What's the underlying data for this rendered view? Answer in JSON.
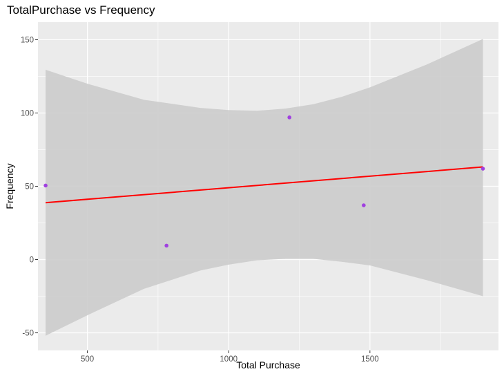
{
  "chart_data": {
    "type": "scatter",
    "title": "TotalPurchase vs Frequency",
    "xlabel": "Total Purchase",
    "ylabel": "Frequency",
    "xlim": [
      325,
      1955
    ],
    "ylim": [
      -62,
      162
    ],
    "x_ticks": [
      500,
      1000,
      1500
    ],
    "y_ticks": [
      -50,
      0,
      50,
      100,
      150
    ],
    "grid": true,
    "points": [
      {
        "x": 352,
        "y": 50.5
      },
      {
        "x": 780,
        "y": 9.5
      },
      {
        "x": 1215,
        "y": 97
      },
      {
        "x": 1478,
        "y": 37
      },
      {
        "x": 1900,
        "y": 62
      }
    ],
    "trend_line": {
      "x": [
        352,
        1900
      ],
      "y": [
        38.8,
        63.2
      ]
    },
    "confidence_band": {
      "x": [
        352,
        500,
        700,
        900,
        1000,
        1100,
        1200,
        1300,
        1400,
        1500,
        1700,
        1900
      ],
      "upper": [
        129.5,
        120,
        109,
        103.5,
        102,
        101.5,
        103,
        106,
        111,
        117.5,
        133,
        150.5
      ],
      "lower": [
        -52,
        -38,
        -20,
        -7.5,
        -3.5,
        -0.5,
        0.5,
        0.5,
        -1.5,
        -4,
        -14,
        -25
      ]
    },
    "colors": {
      "panel": "#ebebeb",
      "grid": "#ffffff",
      "point": "#a040e0",
      "trend": "#ff0000",
      "band": "#cccccc"
    }
  }
}
